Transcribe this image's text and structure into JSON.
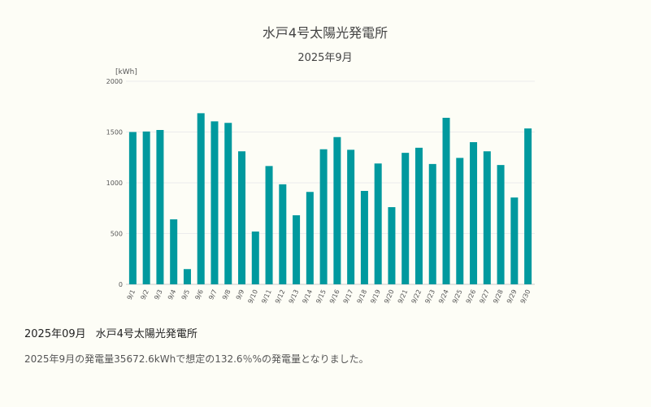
{
  "chart_data": {
    "type": "bar",
    "title": "水戸4号太陽光発電所",
    "subtitle": "2025年9月",
    "ylabel": "[kWh]",
    "xlabel": "",
    "ylim": [
      0,
      2000
    ],
    "yticks": [
      0,
      500,
      1000,
      1500,
      2000
    ],
    "grid": true,
    "bar_color": "#00999e",
    "categories": [
      "9/1",
      "9/2",
      "9/3",
      "9/4",
      "9/5",
      "9/6",
      "9/7",
      "9/8",
      "9/9",
      "9/10",
      "9/11",
      "9/12",
      "9/13",
      "9/14",
      "9/15",
      "9/16",
      "9/17",
      "9/18",
      "9/19",
      "9/20",
      "9/21",
      "9/22",
      "9/23",
      "9/24",
      "9/25",
      "9/26",
      "9/27",
      "9/28",
      "9/29",
      "9/30"
    ],
    "values": [
      1500,
      1505,
      1520,
      640,
      150,
      1685,
      1605,
      1590,
      1310,
      520,
      1165,
      985,
      680,
      910,
      1330,
      1450,
      1325,
      920,
      1190,
      760,
      1295,
      1345,
      1185,
      1640,
      1245,
      1400,
      1310,
      1175,
      855,
      1535
    ]
  },
  "summary": {
    "period": "2025年09月",
    "plant": "水戸4号太陽光発電所",
    "text": "2025年9月の発電量35672.6kWhで想定の132.6％%の発電量となりました。"
  }
}
